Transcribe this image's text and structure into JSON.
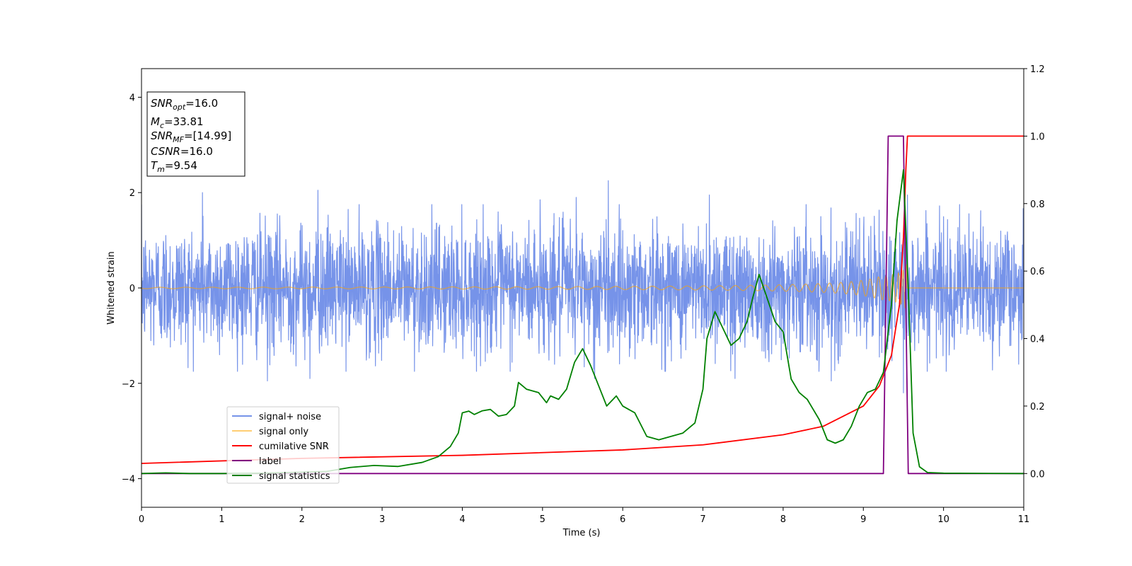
{
  "chart_data": {
    "type": "line",
    "xlabel": "Time (s)",
    "ylabel_left": "Whitened strain",
    "xlim": [
      0,
      11
    ],
    "ylim_left": [
      -4.6,
      4.6
    ],
    "ylim_right": [
      -0.1,
      1.2
    ],
    "x_ticks": [
      0,
      1,
      2,
      3,
      4,
      5,
      6,
      7,
      8,
      9,
      10,
      11
    ],
    "y_ticks_left": [
      -4,
      -2,
      0,
      2,
      4
    ],
    "y_ticks_right": [
      0.0,
      0.2,
      0.4,
      0.6,
      0.8,
      1.0,
      1.2
    ],
    "y_tick_labels_left": [
      "−4",
      "−2",
      "0",
      "2",
      "4"
    ],
    "y_tick_labels_right": [
      "0.0",
      "0.2",
      "0.4",
      "0.6",
      "0.8",
      "1.0",
      "1.2"
    ],
    "grid": false,
    "legend_position": "lower-left",
    "info_box": {
      "snr_opt": {
        "base": "SNR",
        "sub": "opt",
        "value": "=16.0"
      },
      "mc": {
        "base": "M",
        "sub": "c",
        "value": "=33.81"
      },
      "snr_mf": {
        "base": "SNR",
        "sub": "MF",
        "value": "=[14.99]"
      },
      "csnr": {
        "base": "CSNR",
        "sub": "",
        "value": "=16.0"
      },
      "tm": {
        "base": "T",
        "sub": "m",
        "value": "=9.54"
      }
    },
    "series": [
      {
        "name": "signal+ noise",
        "axis": "left",
        "color": "#4169e1",
        "kind": "noise",
        "amplitude_std": 0.65,
        "spikes": [
          [
            0.76,
            2.0
          ],
          [
            2.2,
            2.05
          ],
          [
            5.82,
            2.25
          ],
          [
            5.42,
            1.9
          ],
          [
            4.97,
            1.85
          ],
          [
            7.08,
            1.95
          ],
          [
            1.57,
            -1.95
          ],
          [
            2.1,
            -1.9
          ],
          [
            5.65,
            -1.9
          ],
          [
            7.4,
            -1.9
          ],
          [
            8.6,
            -1.95
          ],
          [
            9.5,
            -2.2
          ],
          [
            9.55,
            1.95
          ]
        ]
      },
      {
        "name": "signal only",
        "axis": "left",
        "color": "#ffa500",
        "kind": "chirp",
        "merger_time": 9.54
      },
      {
        "name": "cumilative SNR",
        "axis": "right",
        "color": "#ff0000",
        "points": [
          [
            0,
            0.03
          ],
          [
            2,
            0.045
          ],
          [
            4,
            0.054
          ],
          [
            6,
            0.07
          ],
          [
            7,
            0.085
          ],
          [
            8,
            0.115
          ],
          [
            8.5,
            0.14
          ],
          [
            9.0,
            0.2
          ],
          [
            9.2,
            0.26
          ],
          [
            9.35,
            0.35
          ],
          [
            9.45,
            0.5
          ],
          [
            9.5,
            0.7
          ],
          [
            9.53,
            0.9
          ],
          [
            9.55,
            1.0
          ],
          [
            11,
            1.0
          ]
        ]
      },
      {
        "name": "label",
        "axis": "right",
        "color": "#800080",
        "points": [
          [
            0,
            0
          ],
          [
            9.25,
            0
          ],
          [
            9.31,
            1.0
          ],
          [
            9.5,
            1.0
          ],
          [
            9.56,
            0
          ],
          [
            11,
            0
          ]
        ]
      },
      {
        "name": "signal statistics",
        "axis": "right",
        "color": "#008000",
        "points": [
          [
            0,
            0.0
          ],
          [
            0.3,
            0.002
          ],
          [
            0.6,
            0.0
          ],
          [
            1.0,
            0.0
          ],
          [
            1.5,
            0.001
          ],
          [
            2.0,
            0.004
          ],
          [
            2.3,
            0.006
          ],
          [
            2.6,
            0.018
          ],
          [
            2.9,
            0.024
          ],
          [
            3.2,
            0.021
          ],
          [
            3.5,
            0.033
          ],
          [
            3.7,
            0.05
          ],
          [
            3.85,
            0.08
          ],
          [
            3.95,
            0.12
          ],
          [
            4.0,
            0.18
          ],
          [
            4.08,
            0.185
          ],
          [
            4.15,
            0.175
          ],
          [
            4.25,
            0.186
          ],
          [
            4.35,
            0.19
          ],
          [
            4.45,
            0.17
          ],
          [
            4.55,
            0.175
          ],
          [
            4.65,
            0.2
          ],
          [
            4.7,
            0.27
          ],
          [
            4.8,
            0.25
          ],
          [
            4.95,
            0.24
          ],
          [
            5.05,
            0.21
          ],
          [
            5.1,
            0.23
          ],
          [
            5.2,
            0.22
          ],
          [
            5.3,
            0.25
          ],
          [
            5.4,
            0.33
          ],
          [
            5.5,
            0.37
          ],
          [
            5.6,
            0.32
          ],
          [
            5.7,
            0.26
          ],
          [
            5.8,
            0.2
          ],
          [
            5.92,
            0.23
          ],
          [
            6.0,
            0.2
          ],
          [
            6.15,
            0.18
          ],
          [
            6.3,
            0.11
          ],
          [
            6.45,
            0.1
          ],
          [
            6.6,
            0.11
          ],
          [
            6.75,
            0.12
          ],
          [
            6.9,
            0.15
          ],
          [
            7.0,
            0.25
          ],
          [
            7.05,
            0.4
          ],
          [
            7.15,
            0.48
          ],
          [
            7.25,
            0.43
          ],
          [
            7.35,
            0.38
          ],
          [
            7.45,
            0.4
          ],
          [
            7.55,
            0.45
          ],
          [
            7.62,
            0.52
          ],
          [
            7.7,
            0.59
          ],
          [
            7.8,
            0.52
          ],
          [
            7.9,
            0.45
          ],
          [
            8.0,
            0.42
          ],
          [
            8.1,
            0.28
          ],
          [
            8.2,
            0.24
          ],
          [
            8.3,
            0.22
          ],
          [
            8.45,
            0.16
          ],
          [
            8.55,
            0.1
          ],
          [
            8.65,
            0.09
          ],
          [
            8.75,
            0.1
          ],
          [
            8.85,
            0.14
          ],
          [
            8.95,
            0.2
          ],
          [
            9.05,
            0.24
          ],
          [
            9.15,
            0.25
          ],
          [
            9.25,
            0.3
          ],
          [
            9.35,
            0.5
          ],
          [
            9.42,
            0.75
          ],
          [
            9.5,
            0.9
          ],
          [
            9.56,
            0.55
          ],
          [
            9.62,
            0.12
          ],
          [
            9.7,
            0.02
          ],
          [
            9.8,
            0.003
          ],
          [
            10.0,
            0.001
          ],
          [
            11,
            0.0
          ]
        ]
      }
    ]
  }
}
